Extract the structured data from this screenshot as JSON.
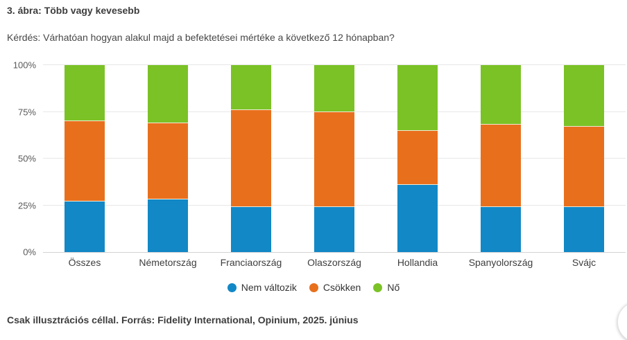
{
  "header": {
    "title": "3. ábra: Több vagy kevesebb",
    "question": "Kérdés: Várhatóan hogyan alakul majd a befektetései mértéke a következő 12 hónapban?"
  },
  "footer": {
    "text": "Csak illusztrációs céllal. Forrás: Fidelity International, Opinium, 2025. június"
  },
  "colors": {
    "blue": "#1288c6",
    "orange": "#e8701d",
    "green": "#7bc226",
    "gridline": "#e7e7e7",
    "axis_line": "#d2d2d2",
    "text_dark": "#3d3d3d",
    "tick_text": "#595959"
  },
  "chart_data": {
    "type": "bar",
    "stacked": true,
    "stacking": "percent",
    "title": "",
    "xlabel": "",
    "ylabel": "",
    "ylim": [
      0,
      100
    ],
    "grid": true,
    "legend_position": "bottom",
    "categories": [
      "Összes",
      "Németország",
      "Franciaország",
      "Olaszország",
      "Hollandia",
      "Spanyolország",
      "Svájc"
    ],
    "series": [
      {
        "name": "Nem változik",
        "color": "#1288c6",
        "values": [
          27,
          28,
          24,
          24,
          36,
          24,
          24
        ]
      },
      {
        "name": "Csökken",
        "color": "#e8701d",
        "values": [
          43,
          41,
          52,
          51,
          29,
          44,
          43
        ]
      },
      {
        "name": "Nő",
        "color": "#7bc226",
        "values": [
          30,
          31,
          24,
          25,
          35,
          32,
          33
        ]
      }
    ],
    "y_ticks": [
      {
        "label": "0%",
        "value": 0
      },
      {
        "label": "25%",
        "value": 25
      },
      {
        "label": "50%",
        "value": 50
      },
      {
        "label": "75%",
        "value": 75
      },
      {
        "label": "100%",
        "value": 100
      }
    ]
  }
}
